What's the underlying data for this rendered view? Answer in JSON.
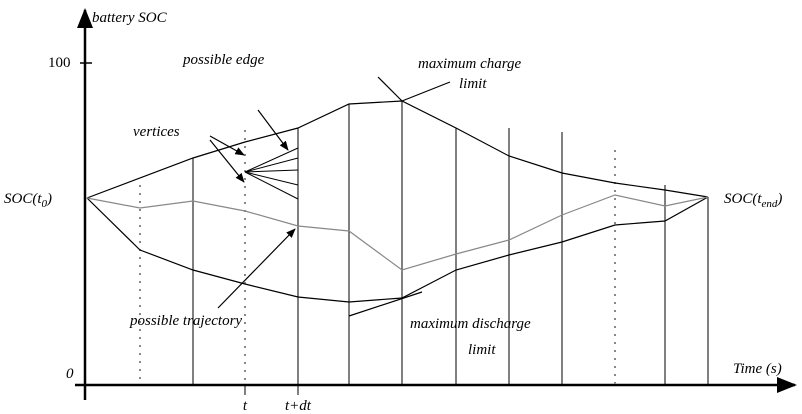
{
  "axes": {
    "y_label": "battery SOC",
    "x_label": "Time (s)",
    "y_max_label": "100",
    "y_min_label": "0",
    "t_label": "t",
    "t_dt_label": "t+dt"
  },
  "labels": {
    "soc_start": {
      "text": "SOC(t",
      "sub": "0",
      "close": ")"
    },
    "soc_end": {
      "text": "SOC(t",
      "sub": "end",
      "close": ")"
    },
    "possible_edge": "possible edge",
    "vertices": "vertices",
    "max_charge": [
      "maximum charge",
      "limit"
    ],
    "max_discharge": [
      "maximum discharge",
      "limit"
    ],
    "possible_trajectory": "possible trajectory"
  }
}
